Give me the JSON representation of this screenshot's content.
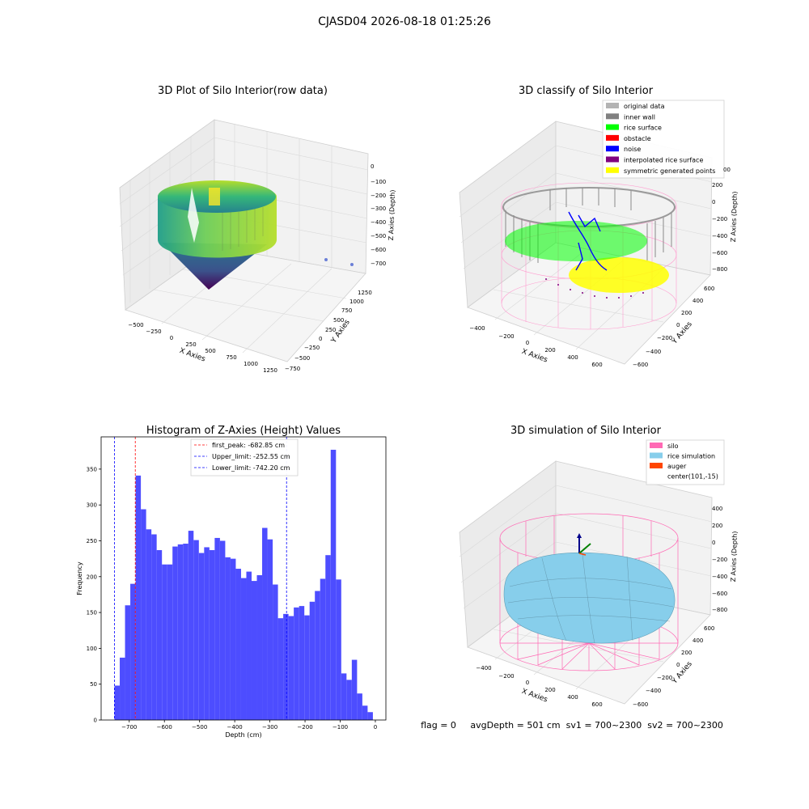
{
  "figure": {
    "suptitle": "CJASD04 2026-08-18 01:25:26",
    "status_line": "flag = 0     avgDepth = 501 cm  sv1 = 700~2300  sv2 = 700~2300"
  },
  "panel1": {
    "title": "3D Plot of Silo Interior(row data)",
    "xlabel": "X Axies",
    "ylabel": "Y Axies",
    "zlabel": "Z Axies (Depth)",
    "xticks": [
      "−500",
      "−250",
      "0",
      "250",
      "500",
      "750",
      "1000",
      "1250"
    ],
    "yticks": [
      "−750",
      "−500",
      "−250",
      "0",
      "250",
      "500",
      "750",
      "1000",
      "1250"
    ],
    "zticks": [
      "0",
      "−100",
      "−200",
      "−300",
      "−400",
      "−500",
      "−600",
      "−700"
    ]
  },
  "panel2": {
    "title": "3D classify of Silo Interior",
    "zlabel": "Z Axies (Depth)",
    "xlabel": "X Axies",
    "ylabel": "Y Axies",
    "xticks": [
      "−400",
      "−200",
      "0",
      "200",
      "400",
      "600"
    ],
    "yticks": [
      "−600",
      "−400",
      "−200",
      "0",
      "200",
      "400",
      "600"
    ],
    "zticks": [
      "200",
      "0",
      "−200",
      "−400",
      "−600",
      "−800"
    ],
    "z_partial_tick": "00",
    "legend": [
      {
        "label": "original data",
        "color": "#b3b3b3"
      },
      {
        "label": "inner wall",
        "color": "#808080"
      },
      {
        "label": "rice surface",
        "color": "#00ff00"
      },
      {
        "label": "obstacle",
        "color": "#ff0000"
      },
      {
        "label": "noise",
        "color": "#0000ff"
      },
      {
        "label": "interpolated rice surface",
        "color": "#800080"
      },
      {
        "label": "symmetric generated points",
        "color": "#ffff00"
      }
    ]
  },
  "panel4": {
    "title": "3D simulation of Silo Interior",
    "zlabel": "Z Axies (Depth)",
    "xlabel": "X Axies",
    "ylabel": "Y Axies",
    "xticks": [
      "−400",
      "−200",
      "0",
      "200",
      "400",
      "600"
    ],
    "yticks": [
      "−600",
      "−400",
      "−200",
      "0",
      "200",
      "400",
      "600"
    ],
    "zticks": [
      "400",
      "200",
      "0",
      "−200",
      "−400",
      "−600",
      "−800"
    ],
    "legend": [
      {
        "label": "silo",
        "color": "#ff69b4"
      },
      {
        "label": "rice simulation",
        "color": "#87ceeb"
      },
      {
        "label": "auger",
        "color": "#ff4500"
      },
      {
        "label": "center(101,-15)",
        "color": ""
      }
    ]
  },
  "chart_data": {
    "type": "bar",
    "title": "Histogram of Z-Axies (Height) Values",
    "xlabel": "Depth (cm)",
    "ylabel": "Frequency",
    "xlim": [
      -780,
      30
    ],
    "ylim": [
      0,
      395
    ],
    "bar_color": "#4d4dff",
    "bin_width": 15,
    "bin_left_edges": [
      -742,
      -727,
      -712,
      -697,
      -682,
      -667,
      -652,
      -637,
      -622,
      -607,
      -592,
      -577,
      -562,
      -547,
      -532,
      -517,
      -502,
      -487,
      -472,
      -457,
      -442,
      -427,
      -412,
      -397,
      -382,
      -367,
      -352,
      -337,
      -322,
      -307,
      -292,
      -277,
      -262,
      -247,
      -232,
      -217,
      -202,
      -187,
      -172,
      -157,
      -142,
      -127,
      -112,
      -97,
      -82,
      -67,
      -52,
      -37,
      -22,
      -7
    ],
    "values": [
      48,
      87,
      160,
      190,
      341,
      294,
      266,
      259,
      237,
      217,
      217,
      242,
      245,
      246,
      264,
      251,
      233,
      241,
      237,
      254,
      250,
      227,
      225,
      211,
      198,
      207,
      194,
      202,
      268,
      252,
      189,
      142,
      148,
      145,
      157,
      159,
      146,
      165,
      180,
      197,
      230,
      377,
      196,
      65,
      56,
      84,
      37,
      20,
      11,
      0
    ],
    "xticks": [
      "−700",
      "−600",
      "−500",
      "−400",
      "−300",
      "−200",
      "−100",
      "0"
    ],
    "xtick_values": [
      -700,
      -600,
      -500,
      -400,
      -300,
      -200,
      -100,
      0
    ],
    "yticks": [
      "0",
      "50",
      "100",
      "150",
      "200",
      "250",
      "300",
      "350"
    ],
    "ytick_values": [
      0,
      50,
      100,
      150,
      200,
      250,
      300,
      350
    ],
    "lines": [
      {
        "label": "first_peak: -682.85 cm",
        "x": -682.85,
        "color": "#ff0000"
      },
      {
        "label": "Upper_limit: -252.55 cm",
        "x": -252.55,
        "color": "#0000ff"
      },
      {
        "label": "Lower_limit: -742.20 cm",
        "x": -742.2,
        "color": "#0000ff"
      }
    ],
    "legend_position": "top-center"
  }
}
